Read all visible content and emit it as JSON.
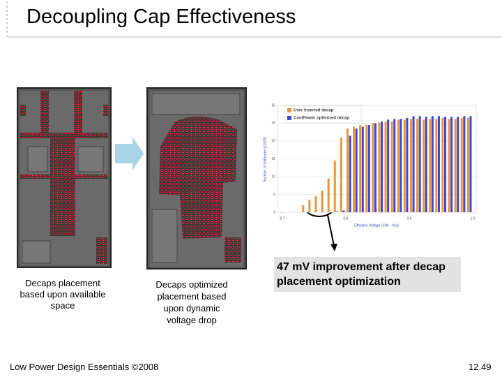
{
  "slide": {
    "title": "Decoupling Cap Effectiveness",
    "captions": [
      "Decaps placement based upon available space",
      "Decaps optimized placement based upon dynamic voltage drop"
    ],
    "callout": "47 mV improvement after decap placement optimization",
    "footer": "Low Power Design Essentials ©2008",
    "page": "12.49"
  },
  "chart_data": {
    "type": "bar",
    "x_label": "Effective Voltage (Vdd - Vss)",
    "y_label": "Number of Instances (x1000)",
    "x": [
      0.735,
      0.745,
      0.755,
      0.765,
      0.775,
      0.785,
      0.795,
      0.805,
      0.815,
      0.825,
      0.835,
      0.845,
      0.855,
      0.865,
      0.875,
      0.885,
      0.895,
      0.905,
      0.915,
      0.925,
      0.935,
      0.945,
      0.955,
      0.965,
      0.975,
      0.985,
      0.995
    ],
    "series": [
      {
        "name": "User inserted decap",
        "color": "#e8963a",
        "values": [
          2,
          3.5,
          4.5,
          6,
          9.5,
          14.5,
          21,
          23.5,
          24,
          24.5,
          24.5,
          25,
          25.2,
          25.5,
          25.5,
          26,
          26,
          26.2,
          26.2,
          26,
          26.2,
          26.2,
          26.5,
          26.2,
          26.2,
          26.5,
          26.5
        ]
      },
      {
        "name": "CoolPower optimized decap",
        "color": "#3c46d8",
        "values": [
          0,
          0,
          0,
          0,
          0,
          0.2,
          0.5,
          21.5,
          23.5,
          24,
          24.5,
          25,
          25.5,
          26,
          26.2,
          26.2,
          26.5,
          27,
          27,
          26.8,
          27,
          27,
          26.8,
          26.8,
          26.8,
          27,
          27
        ]
      }
    ],
    "xlim": [
      0.7,
      1.0
    ],
    "xticks": [
      0.7,
      0.8,
      0.9,
      {
        "value": 1.0,
        "label": "1.0"
      }
    ],
    "ylim": [
      0,
      30
    ],
    "yticks": [
      0,
      5,
      10,
      15,
      20,
      25,
      30
    ],
    "grid": true
  }
}
